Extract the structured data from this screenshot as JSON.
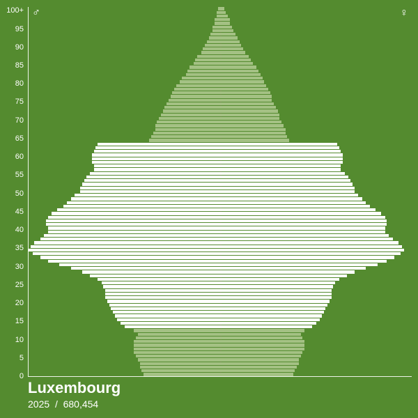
{
  "background_color": "#548b2f",
  "axis_color": "#ffffff",
  "tick_color": "#ffffff",
  "tick_fontsize": 11,
  "center_line_color": "rgba(90,120,50,0.9)",
  "gender": {
    "male_symbol": "♂",
    "female_symbol": "♀",
    "label_color": "#ffffff",
    "label_fontsize": 16
  },
  "footer": {
    "country": "Luxembourg",
    "year": "2025",
    "separator": "/",
    "population": "680,454",
    "country_fontsize": 22,
    "meta_fontsize": 14,
    "text_color": "#ffffff"
  },
  "y_axis": {
    "ticks": [
      0,
      5,
      10,
      15,
      20,
      25,
      30,
      35,
      40,
      45,
      50,
      55,
      60,
      65,
      70,
      75,
      80,
      85,
      90,
      95,
      100
    ],
    "top_label": "100+",
    "max_age": 101
  },
  "colors": {
    "highlight": "#ffffff",
    "muted": "#a4c184"
  },
  "highlight_range": {
    "min": 13,
    "max": 63
  },
  "max_value": 100,
  "ages_male": [
    40,
    41,
    42,
    42,
    43,
    44,
    45,
    45,
    45,
    45,
    44,
    43,
    45,
    50,
    52,
    54,
    55,
    56,
    57,
    58,
    59,
    60,
    60,
    60,
    61,
    62,
    64,
    68,
    72,
    78,
    84,
    90,
    94,
    98,
    100,
    99,
    97,
    94,
    92,
    90,
    90,
    91,
    91,
    90,
    88,
    85,
    82,
    80,
    78,
    76,
    73,
    73,
    72,
    71,
    70,
    68,
    66,
    66,
    67,
    67,
    67,
    66,
    65,
    64,
    37,
    36,
    35,
    34,
    34,
    33,
    32,
    31,
    30,
    29,
    28,
    27,
    26,
    25,
    24,
    23,
    21,
    20,
    18,
    17,
    16,
    14,
    13,
    12,
    10,
    9,
    8,
    7,
    6,
    5,
    4,
    4,
    3,
    3,
    2,
    2,
    1
  ],
  "ages_female": [
    38,
    39,
    40,
    41,
    41,
    42,
    43,
    44,
    44,
    44,
    43,
    42,
    44,
    48,
    50,
    52,
    53,
    54,
    55,
    56,
    57,
    58,
    58,
    58,
    59,
    60,
    62,
    66,
    70,
    76,
    82,
    87,
    91,
    94,
    96,
    95,
    93,
    90,
    88,
    86,
    86,
    87,
    87,
    86,
    84,
    81,
    78,
    76,
    74,
    72,
    70,
    70,
    69,
    68,
    67,
    65,
    63,
    63,
    64,
    64,
    64,
    63,
    62,
    61,
    36,
    35,
    34,
    34,
    33,
    32,
    31,
    31,
    30,
    29,
    28,
    27,
    27,
    26,
    25,
    24,
    23,
    22,
    21,
    20,
    19,
    17,
    16,
    15,
    13,
    12,
    11,
    10,
    9,
    8,
    7,
    6,
    5,
    5,
    4,
    3,
    2
  ]
}
